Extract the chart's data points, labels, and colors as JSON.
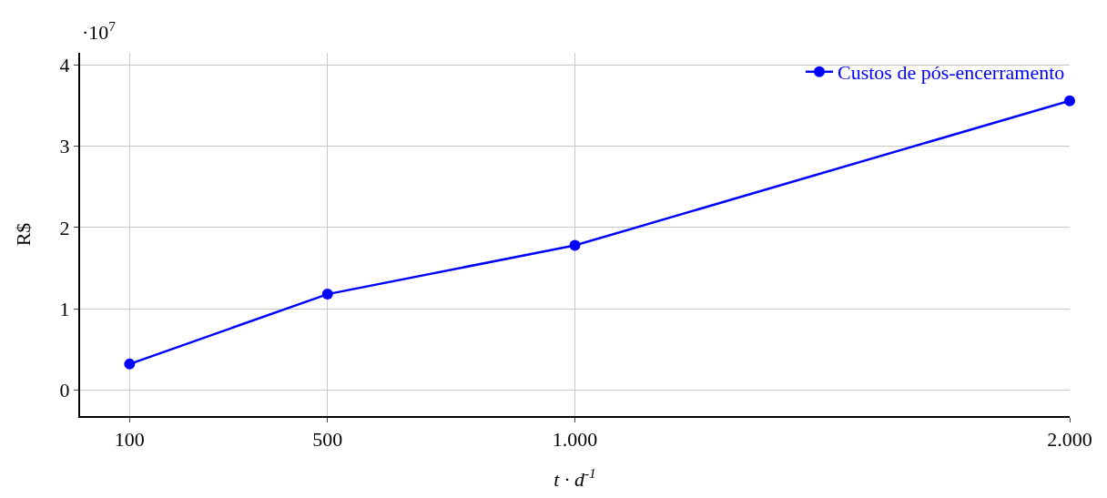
{
  "chart_data": {
    "type": "line",
    "xlabel": "t · d$^{-1}$",
    "ylabel": "R$",
    "annotations": [
      "·10$^{7}$"
    ],
    "x": [
      100,
      500,
      1000,
      2000
    ],
    "series": [
      {
        "name": "Custos de pós-encerramento",
        "color": "#0000ff",
        "values": [
          0.32,
          1.18,
          1.78,
          3.56
        ]
      }
    ],
    "xlim": [
      0,
      2000
    ],
    "xticks": [
      100,
      500,
      {
        "value": 1000,
        "label": "1.000"
      },
      {
        "value": 2000,
        "label": "2.000"
      }
    ],
    "ylim": [
      -0.32,
      4.15
    ],
    "yticks": [
      0,
      1,
      2,
      3,
      4
    ],
    "grid": true,
    "legend": "top right",
    "marker": "circle",
    "line_style": "solid"
  }
}
